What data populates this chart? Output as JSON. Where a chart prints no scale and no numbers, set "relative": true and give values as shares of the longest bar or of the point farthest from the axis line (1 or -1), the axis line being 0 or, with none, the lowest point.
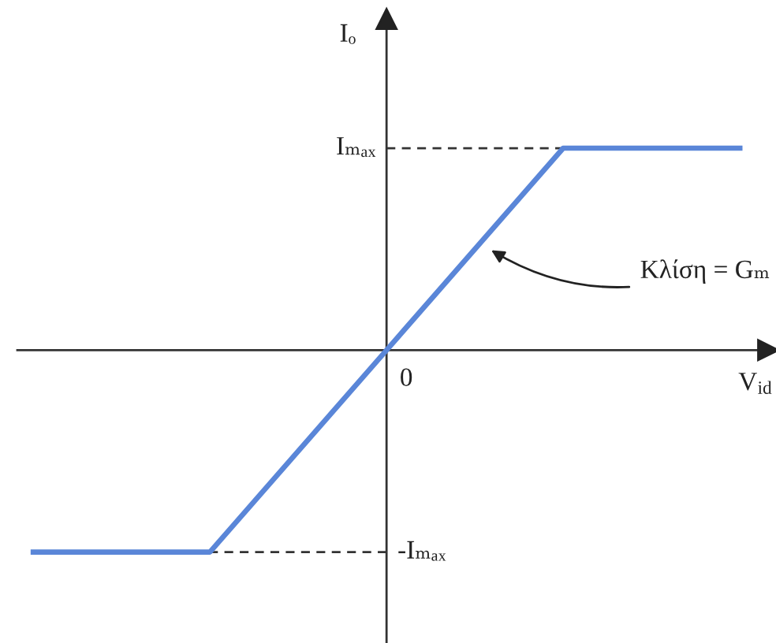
{
  "chart_data": {
    "type": "line",
    "relative": true,
    "categories": [
      null,
      null,
      null,
      null,
      null
    ],
    "series": [
      {
        "color": "#5a86d8",
        "values": [
          -1,
          -1,
          0,
          1,
          1
        ]
      }
    ],
    "xlabel": "V$_{id}$",
    "ylabel": "Iₒ",
    "ref_lines": [
      {
        "axis": "y",
        "value": 1,
        "label": "Iₘₐₓ",
        "color": "#333333",
        "line_style": "dashed"
      },
      {
        "axis": "y",
        "value": -1,
        "label": "-Iₘₐₓ",
        "color": "#333333",
        "line_style": "dashed"
      }
    ],
    "annotations": [
      "Κλίση = Gₘ",
      "0"
    ],
    "line_style": "solid"
  }
}
